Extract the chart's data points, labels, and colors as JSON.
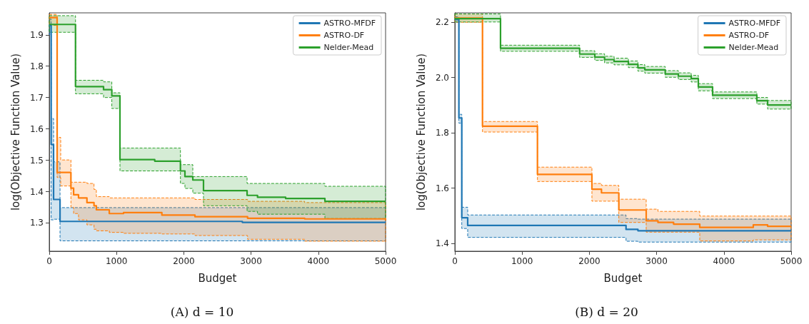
{
  "chart_data": [
    {
      "type": "step",
      "title": "(A) d = 10",
      "xlabel": "Budget",
      "ylabel": "log(Objective Function Value)",
      "xlim": [
        0,
        5000
      ],
      "xticks": [
        0,
        1000,
        2000,
        3000,
        4000,
        5000
      ],
      "ylim": [
        1.21,
        1.97
      ],
      "yticks": [
        1.3,
        1.4,
        1.5,
        1.6,
        1.7,
        1.8,
        1.9
      ],
      "grid": false,
      "legend": "top right",
      "marker": "none",
      "line_style": "solid",
      "series": [
        {
          "name": "ASTRO-MFDF",
          "color": "#1f77b4",
          "x": [
            0,
            28,
            64,
            160,
            2870,
            5000
          ],
          "values": [
            1.93,
            1.55,
            1.375,
            1.305,
            1.302,
            1.302
          ],
          "lower": [
            1.9,
            1.31,
            1.312,
            1.243,
            1.243,
            1.243
          ],
          "upper": [
            1.95,
            1.633,
            1.495,
            1.349,
            1.349,
            1.349
          ]
        },
        {
          "name": "ASTRO-DF",
          "color": "#ff7f0e",
          "x": [
            0,
            117,
            170,
            322,
            362,
            435,
            560,
            665,
            700,
            892,
            1104,
            1674,
            2166,
            2948,
            3797,
            5000
          ],
          "values": [
            1.955,
            1.461,
            1.461,
            1.411,
            1.39,
            1.38,
            1.365,
            1.355,
            1.342,
            1.33,
            1.333,
            1.325,
            1.32,
            1.315,
            1.313,
            1.308
          ],
          "lower": [
            1.93,
            1.445,
            1.418,
            1.35,
            1.33,
            1.31,
            1.294,
            1.28,
            1.275,
            1.27,
            1.267,
            1.265,
            1.26,
            1.248,
            1.242,
            1.24
          ],
          "upper": [
            1.965,
            1.573,
            1.501,
            1.43,
            1.43,
            1.43,
            1.426,
            1.407,
            1.384,
            1.38,
            1.38,
            1.38,
            1.375,
            1.369,
            1.365,
            1.358
          ]
        },
        {
          "name": "Nelder-Mead",
          "color": "#2ca02c",
          "x": [
            0,
            390,
            807,
            930,
            1051,
            1568,
            1950,
            2017,
            2134,
            2293,
            2941,
            3096,
            3514,
            4098,
            5000
          ],
          "values": [
            1.933,
            1.735,
            1.725,
            1.705,
            1.502,
            1.497,
            1.466,
            1.448,
            1.437,
            1.403,
            1.388,
            1.382,
            1.378,
            1.369,
            1.369
          ],
          "lower": [
            1.908,
            1.712,
            1.7,
            1.665,
            1.466,
            1.466,
            1.426,
            1.41,
            1.395,
            1.355,
            1.337,
            1.328,
            1.328,
            1.314,
            1.314
          ],
          "upper": [
            1.961,
            1.755,
            1.75,
            1.715,
            1.539,
            1.539,
            1.486,
            1.486,
            1.448,
            1.448,
            1.426,
            1.426,
            1.426,
            1.417,
            1.417
          ]
        }
      ]
    },
    {
      "type": "step",
      "title": "(B) d = 20",
      "xlabel": "Budget",
      "ylabel": "log(Objective Function Value)",
      "xlim": [
        0,
        5000
      ],
      "xticks": [
        0,
        1000,
        2000,
        3000,
        4000,
        5000
      ],
      "ylim": [
        1.372,
        2.234
      ],
      "yticks": [
        1.4,
        1.6,
        1.8,
        {
          "value": 2,
          "label": "2.0"
        },
        2.2
      ],
      "grid": false,
      "legend": "top right",
      "marker": "none",
      "line_style": "solid",
      "series": [
        {
          "name": "ASTRO-MFDF",
          "color": "#1f77b4",
          "x": [
            0,
            60,
            103,
            191,
            2545,
            2722,
            5000
          ],
          "values": [
            2.21,
            1.854,
            1.493,
            1.465,
            1.451,
            1.446,
            1.446
          ],
          "lower": [
            2.2,
            1.835,
            1.454,
            1.422,
            1.408,
            1.405,
            1.405
          ],
          "upper": [
            2.22,
            1.867,
            1.531,
            1.503,
            1.49,
            1.488,
            1.488
          ]
        },
        {
          "name": "ASTRO-DF",
          "color": "#ff7f0e",
          "x": [
            0,
            411,
            1228,
            2038,
            2180,
            2438,
            2845,
            3020,
            3252,
            3641,
            4437,
            4650,
            5000
          ],
          "values": [
            2.215,
            1.824,
            1.65,
            1.596,
            1.583,
            1.521,
            1.482,
            1.476,
            1.47,
            1.458,
            1.467,
            1.462,
            1.462
          ],
          "lower": [
            2.2,
            1.803,
            1.624,
            1.553,
            1.553,
            1.476,
            1.441,
            1.441,
            1.441,
            1.409,
            1.413,
            1.413,
            1.413
          ],
          "upper": [
            2.23,
            1.841,
            1.676,
            1.617,
            1.61,
            1.56,
            1.524,
            1.516,
            1.516,
            1.499,
            1.499,
            1.499,
            1.499
          ]
        },
        {
          "name": "Nelder-Mead",
          "color": "#2ca02c",
          "x": [
            0,
            679,
            1855,
            2081,
            2226,
            2367,
            2580,
            2722,
            2824,
            3128,
            3323,
            3514,
            3620,
            3832,
            4490,
            4650,
            5000
          ],
          "values": [
            2.213,
            2.106,
            2.085,
            2.074,
            2.065,
            2.058,
            2.048,
            2.035,
            2.028,
            2.013,
            2.005,
            1.996,
            1.966,
            1.936,
            1.916,
            1.901,
            1.901
          ],
          "lower": [
            2.201,
            2.095,
            2.073,
            2.062,
            2.053,
            2.046,
            2.036,
            2.023,
            2.016,
            2.001,
            1.993,
            1.984,
            1.952,
            1.924,
            1.904,
            1.886,
            1.886
          ],
          "upper": [
            2.23,
            2.117,
            2.097,
            2.086,
            2.077,
            2.07,
            2.06,
            2.047,
            2.04,
            2.025,
            2.017,
            2.008,
            1.978,
            1.948,
            1.928,
            1.917,
            1.917
          ]
        }
      ]
    }
  ]
}
